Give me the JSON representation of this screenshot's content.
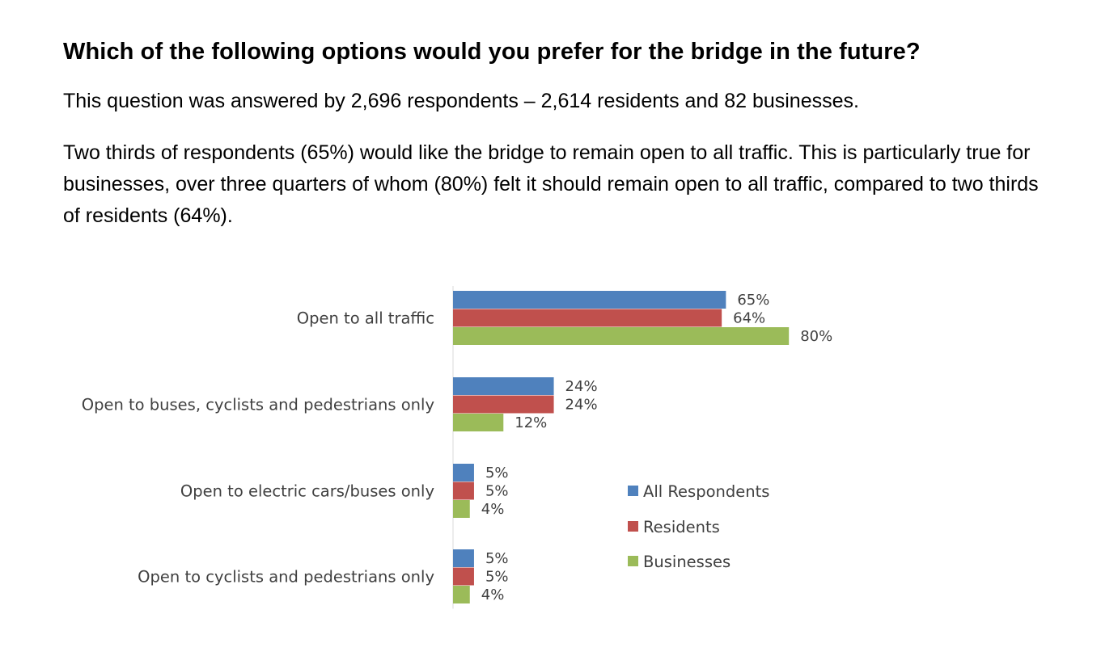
{
  "heading": "Which of the following options would you prefer for the bridge in the future?",
  "paragraphs": {
    "respondents": "This question was answered by 2,696 respondents – 2,614 residents and 82 businesses.",
    "summary": "Two thirds of respondents (65%) would like the bridge to remain open to all traffic. This is particularly true for businesses, over three quarters of whom (80%) felt it should remain open to all traffic, compared to two thirds of residents (64%)."
  },
  "chart_data": {
    "type": "bar",
    "orientation": "horizontal",
    "title": "",
    "xlabel": "",
    "ylabel": "",
    "xlim": [
      0,
      100
    ],
    "grid": false,
    "legend_position": "right",
    "value_suffix": "%",
    "categories": [
      "Open to all traffic",
      "Open to buses, cyclists and pedestrians only",
      "Open to electric cars/buses only",
      "Open to cyclists and pedestrians only"
    ],
    "series": [
      {
        "name": "All Respondents",
        "color": "#4F81BD",
        "values": [
          65,
          24,
          5,
          5
        ]
      },
      {
        "name": "Residents",
        "color": "#C0504D",
        "values": [
          64,
          24,
          5,
          5
        ]
      },
      {
        "name": "Businesses",
        "color": "#9BBB59",
        "values": [
          80,
          12,
          4,
          4
        ]
      }
    ]
  }
}
